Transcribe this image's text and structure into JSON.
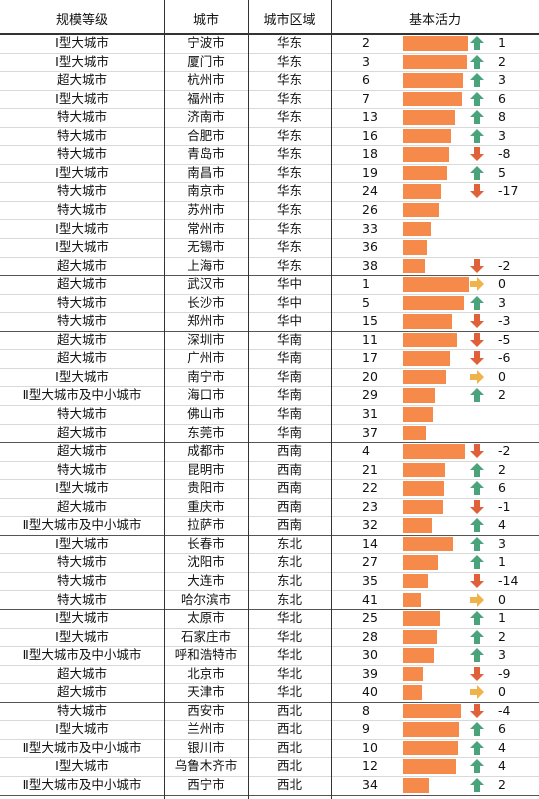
{
  "headers": {
    "size": "规模等级",
    "city": "城市",
    "region": "城市区域",
    "vitality": "基本活力"
  },
  "rows": [
    {
      "size": "Ⅰ型大城市",
      "city": "宁波市",
      "region": "华东",
      "rank": "2",
      "dir": "up",
      "change": "1"
    },
    {
      "size": "Ⅰ型大城市",
      "city": "厦门市",
      "region": "华东",
      "rank": "3",
      "dir": "up",
      "change": "2"
    },
    {
      "size": "超大城市",
      "city": "杭州市",
      "region": "华东",
      "rank": "6",
      "dir": "up",
      "change": "3"
    },
    {
      "size": "Ⅰ型大城市",
      "city": "福州市",
      "region": "华东",
      "rank": "7",
      "dir": "up",
      "change": "6"
    },
    {
      "size": "特大城市",
      "city": "济南市",
      "region": "华东",
      "rank": "13",
      "dir": "up",
      "change": "8"
    },
    {
      "size": "特大城市",
      "city": "合肥市",
      "region": "华东",
      "rank": "16",
      "dir": "up",
      "change": "3"
    },
    {
      "size": "特大城市",
      "city": "青岛市",
      "region": "华东",
      "rank": "18",
      "dir": "down",
      "change": "-8"
    },
    {
      "size": "Ⅰ型大城市",
      "city": "南昌市",
      "region": "华东",
      "rank": "19",
      "dir": "up",
      "change": "5"
    },
    {
      "size": "特大城市",
      "city": "南京市",
      "region": "华东",
      "rank": "24",
      "dir": "down",
      "change": "-17"
    },
    {
      "size": "特大城市",
      "city": "苏州市",
      "region": "华东",
      "rank": "26",
      "dir": "",
      "change": ""
    },
    {
      "size": "Ⅰ型大城市",
      "city": "常州市",
      "region": "华东",
      "rank": "33",
      "dir": "",
      "change": ""
    },
    {
      "size": "Ⅰ型大城市",
      "city": "无锡市",
      "region": "华东",
      "rank": "36",
      "dir": "",
      "change": ""
    },
    {
      "size": "超大城市",
      "city": "上海市",
      "region": "华东",
      "rank": "38",
      "dir": "down",
      "change": "-2"
    },
    {
      "size": "超大城市",
      "city": "武汉市",
      "region": "华中",
      "rank": "1",
      "dir": "flat",
      "change": "0"
    },
    {
      "size": "特大城市",
      "city": "长沙市",
      "region": "华中",
      "rank": "5",
      "dir": "up",
      "change": "3"
    },
    {
      "size": "特大城市",
      "city": "郑州市",
      "region": "华中",
      "rank": "15",
      "dir": "down",
      "change": "-3"
    },
    {
      "size": "超大城市",
      "city": "深圳市",
      "region": "华南",
      "rank": "11",
      "dir": "down",
      "change": "-5"
    },
    {
      "size": "超大城市",
      "city": "广州市",
      "region": "华南",
      "rank": "17",
      "dir": "down",
      "change": "-6"
    },
    {
      "size": "Ⅰ型大城市",
      "city": "南宁市",
      "region": "华南",
      "rank": "20",
      "dir": "flat",
      "change": "0"
    },
    {
      "size": "Ⅱ型大城市及中小城市",
      "city": "海口市",
      "region": "华南",
      "rank": "29",
      "dir": "up",
      "change": "2"
    },
    {
      "size": "特大城市",
      "city": "佛山市",
      "region": "华南",
      "rank": "31",
      "dir": "",
      "change": ""
    },
    {
      "size": "超大城市",
      "city": "东莞市",
      "region": "华南",
      "rank": "37",
      "dir": "",
      "change": ""
    },
    {
      "size": "超大城市",
      "city": "成都市",
      "region": "西南",
      "rank": "4",
      "dir": "down",
      "change": "-2"
    },
    {
      "size": "特大城市",
      "city": "昆明市",
      "region": "西南",
      "rank": "21",
      "dir": "up",
      "change": "2"
    },
    {
      "size": "Ⅰ型大城市",
      "city": "贵阳市",
      "region": "西南",
      "rank": "22",
      "dir": "up",
      "change": "6"
    },
    {
      "size": "超大城市",
      "city": "重庆市",
      "region": "西南",
      "rank": "23",
      "dir": "down",
      "change": "-1"
    },
    {
      "size": "Ⅱ型大城市及中小城市",
      "city": "拉萨市",
      "region": "西南",
      "rank": "32",
      "dir": "up",
      "change": "4"
    },
    {
      "size": "Ⅰ型大城市",
      "city": "长春市",
      "region": "东北",
      "rank": "14",
      "dir": "up",
      "change": "3"
    },
    {
      "size": "特大城市",
      "city": "沈阳市",
      "region": "东北",
      "rank": "27",
      "dir": "up",
      "change": "1"
    },
    {
      "size": "特大城市",
      "city": "大连市",
      "region": "东北",
      "rank": "35",
      "dir": "down",
      "change": "-14"
    },
    {
      "size": "特大城市",
      "city": "哈尔滨市",
      "region": "东北",
      "rank": "41",
      "dir": "flat",
      "change": "0"
    },
    {
      "size": "Ⅰ型大城市",
      "city": "太原市",
      "region": "华北",
      "rank": "25",
      "dir": "up",
      "change": "1"
    },
    {
      "size": "Ⅰ型大城市",
      "city": "石家庄市",
      "region": "华北",
      "rank": "28",
      "dir": "up",
      "change": "2"
    },
    {
      "size": "Ⅱ型大城市及中小城市",
      "city": "呼和浩特市",
      "region": "华北",
      "rank": "30",
      "dir": "up",
      "change": "3"
    },
    {
      "size": "超大城市",
      "city": "北京市",
      "region": "华北",
      "rank": "39",
      "dir": "down",
      "change": "-9"
    },
    {
      "size": "超大城市",
      "city": "天津市",
      "region": "华北",
      "rank": "40",
      "dir": "flat",
      "change": "0"
    },
    {
      "size": "特大城市",
      "city": "西安市",
      "region": "西北",
      "rank": "8",
      "dir": "down",
      "change": "-4"
    },
    {
      "size": "Ⅰ型大城市",
      "city": "兰州市",
      "region": "西北",
      "rank": "9",
      "dir": "up",
      "change": "6"
    },
    {
      "size": "Ⅱ型大城市及中小城市",
      "city": "银川市",
      "region": "西北",
      "rank": "10",
      "dir": "up",
      "change": "4"
    },
    {
      "size": "Ⅰ型大城市",
      "city": "乌鲁木齐市",
      "region": "西北",
      "rank": "12",
      "dir": "up",
      "change": "4"
    },
    {
      "size": "Ⅱ型大城市及中小城市",
      "city": "西宁市",
      "region": "西北",
      "rank": "34",
      "dir": "up",
      "change": "2"
    }
  ],
  "colors": {
    "bar": "#f58a4b",
    "up": "#4aa37a",
    "down": "#e0603a",
    "flat": "#f0b24a"
  }
}
